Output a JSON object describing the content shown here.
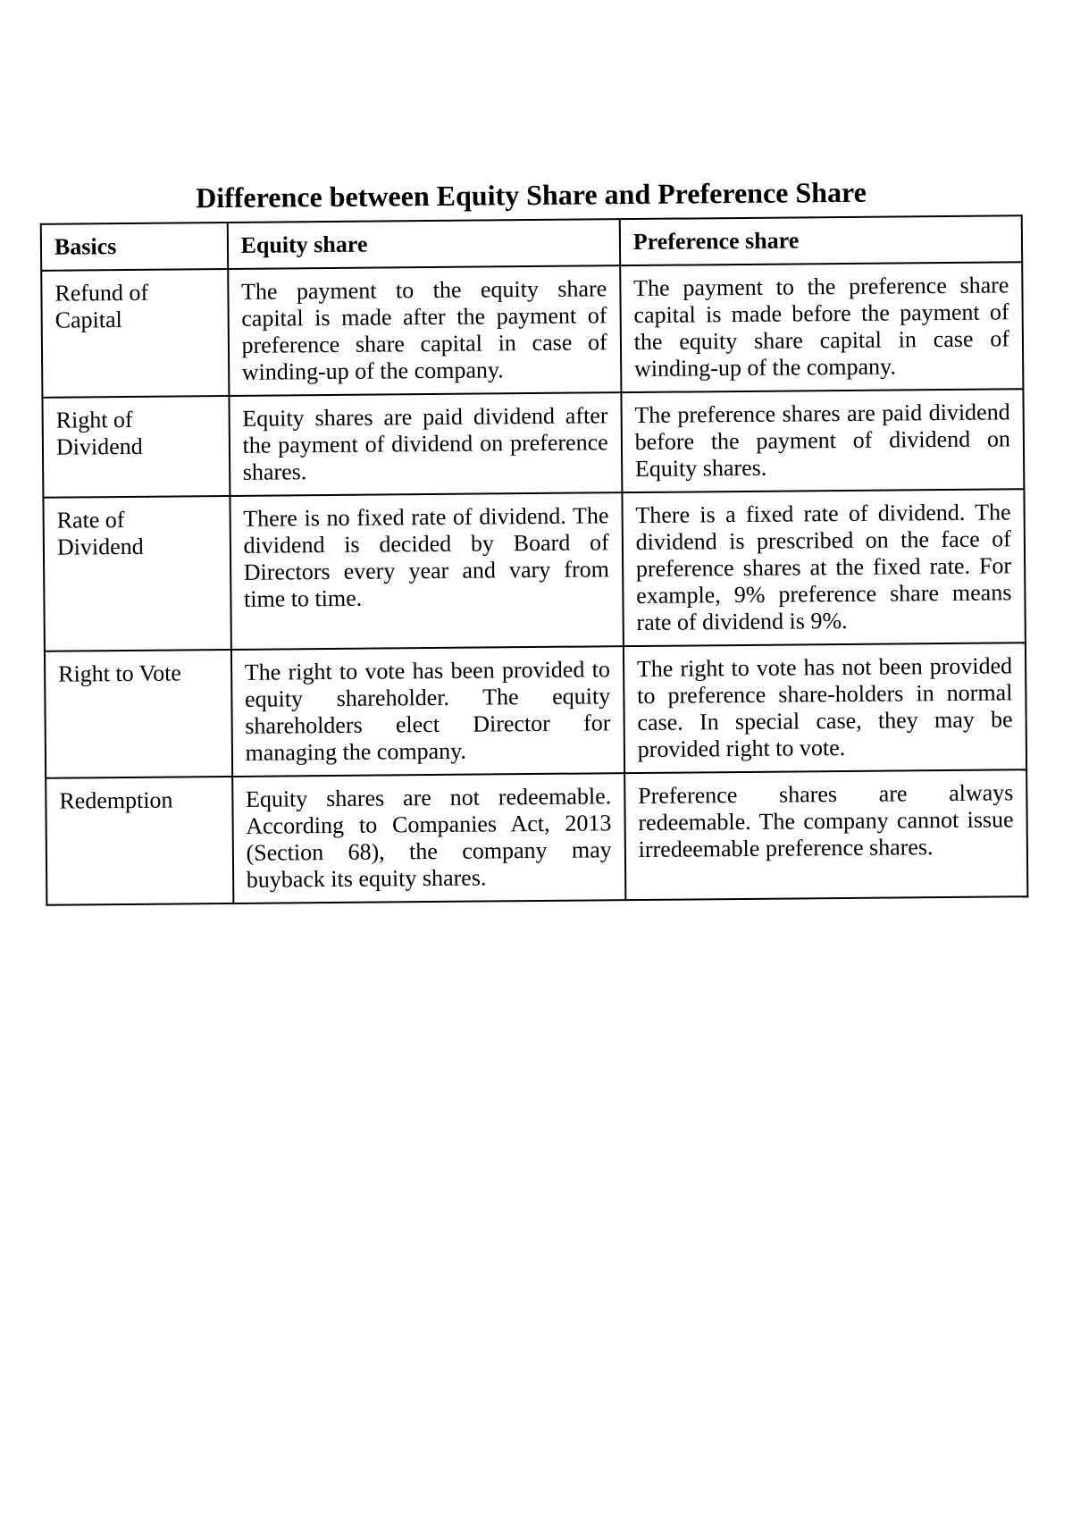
{
  "title": "Difference between Equity Share and Preference Share",
  "table": {
    "columns": [
      "Basics",
      "Equity share",
      "Preference share"
    ],
    "rows": [
      {
        "basics": "Refund of Capital",
        "equity": "The payment to the equity share capital is made after the payment of preference share capital in case of winding-up of the company.",
        "preference": "The payment to the preference share capital is made before the payment of the equity share capital in case of winding-up of the company."
      },
      {
        "basics": "Right of Dividend",
        "equity": "Equity shares are paid dividend after the payment of dividend on preference shares.",
        "preference": "The preference shares are paid dividend before the payment of dividend on Equity shares."
      },
      {
        "basics": "Rate of Dividend",
        "equity": "There is no fixed rate of dividend. The dividend is decided by Board of Directors every year and vary from time to time.",
        "preference": "There is a fixed rate of dividend. The dividend is prescribed on the face of preference shares at the fixed rate. For example, 9% preference share means rate of dividend is 9%."
      },
      {
        "basics": "Right to Vote",
        "equity": "The right to vote has been provided to equity shareholder. The equity shareholders elect Director for managing the company.",
        "preference": "The right to vote has not been provided to preference share-holders in normal case. In special case, they may be provided right to vote."
      },
      {
        "basics": "Redemption",
        "equity": "Equity shares are not redeemable. According to Companies Act, 2013 (Section 68), the company may buyback its equity shares.",
        "preference": "Preference shares are always redeemable. The company cannot issue irredeemable preference shares."
      }
    ]
  }
}
